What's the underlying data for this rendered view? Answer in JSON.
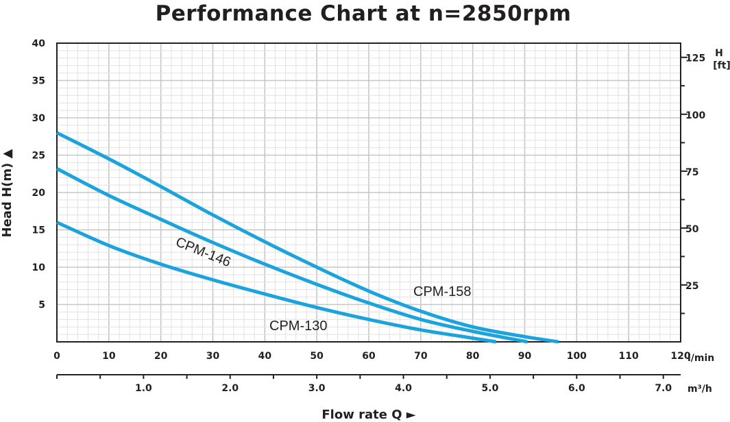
{
  "chart_data": {
    "type": "line",
    "title": "Performance Chart at n=2850rpm",
    "ylabel": "Head H(m) ▲",
    "ylim": [
      0,
      40
    ],
    "y_ticks": [
      5,
      10,
      15,
      20,
      25,
      30,
      35,
      40
    ],
    "y2_unit": [
      "H",
      "[ft]"
    ],
    "y2_ticks": [
      25,
      50,
      75,
      100,
      125
    ],
    "x_lmin_unit": "l/min",
    "xlim": [
      0,
      120
    ],
    "x_lmin_ticks": [
      0,
      10,
      20,
      30,
      40,
      50,
      60,
      70,
      80,
      90,
      100,
      110,
      120
    ],
    "x_m3h_unit": "m³/h",
    "x_m3h_ticks": [
      "1.0",
      "2.0",
      "3.0",
      "4.0",
      "5.0",
      "6.0",
      "7.0"
    ],
    "xlabel": "Flow rate Q  ►",
    "grid": true,
    "line_color": "#1ba3dd",
    "series": [
      {
        "name": "CPM-158",
        "x": [
          0,
          10,
          20,
          30,
          40,
          50,
          60,
          70,
          80,
          90,
          96.5
        ],
        "y": [
          28.0,
          24.5,
          20.8,
          17.0,
          13.4,
          10.0,
          6.8,
          4.1,
          2.0,
          0.7,
          0.0
        ]
      },
      {
        "name": "CPM-146",
        "x": [
          0,
          10,
          20,
          30,
          40,
          50,
          60,
          70,
          80,
          90.5
        ],
        "y": [
          23.2,
          19.6,
          16.4,
          13.3,
          10.4,
          7.7,
          5.2,
          3.0,
          1.4,
          0.0
        ]
      },
      {
        "name": "CPM-130",
        "x": [
          0,
          10,
          20,
          30,
          40,
          50,
          60,
          70,
          80,
          84.5
        ],
        "y": [
          16.0,
          12.9,
          10.4,
          8.3,
          6.4,
          4.6,
          3.0,
          1.6,
          0.5,
          0.0
        ]
      }
    ]
  }
}
